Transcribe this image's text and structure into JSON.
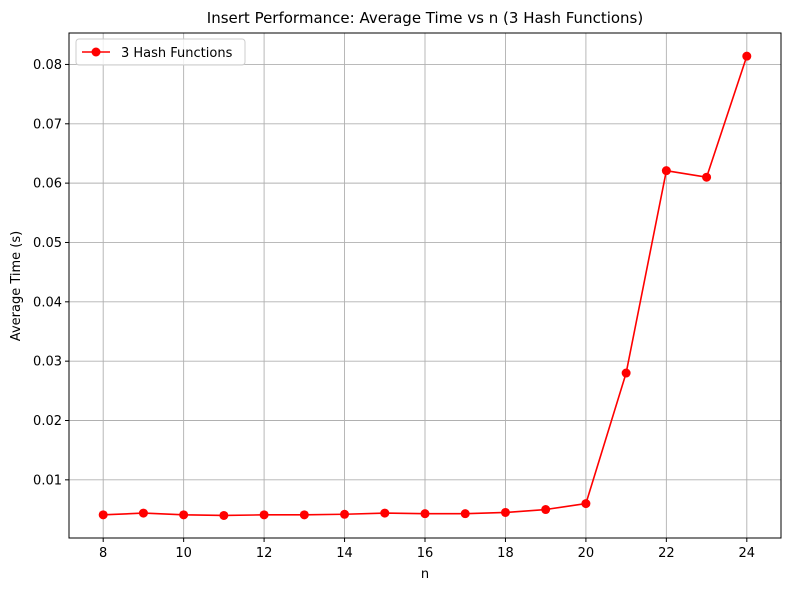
{
  "chart_data": {
    "type": "line",
    "title": "Insert Performance: Average Time vs n (3 Hash Functions)",
    "xlabel": "n",
    "ylabel": "Average Time (s)",
    "x": [
      8,
      9,
      10,
      11,
      12,
      13,
      14,
      15,
      16,
      17,
      18,
      19,
      20,
      21,
      22,
      23,
      24
    ],
    "series": [
      {
        "name": "3 Hash Functions",
        "color": "#ff0000",
        "marker": "circle",
        "values": [
          0.0041,
          0.0044,
          0.0041,
          0.004,
          0.0041,
          0.0041,
          0.0042,
          0.0044,
          0.0043,
          0.0043,
          0.0045,
          0.005,
          0.006,
          0.028,
          0.0621,
          0.061,
          0.0814
        ]
      }
    ],
    "xlim": [
      7.15,
      24.85
    ],
    "ylim": [
      0.0002,
      0.0853
    ],
    "xticks": [
      8,
      10,
      12,
      14,
      16,
      18,
      20,
      22,
      24
    ],
    "yticks": [
      0.01,
      0.02,
      0.03,
      0.04,
      0.05,
      0.06,
      0.07,
      0.08
    ],
    "ytick_labels": [
      "0.01",
      "0.02",
      "0.03",
      "0.04",
      "0.05",
      "0.06",
      "0.07",
      "0.08"
    ],
    "grid": true,
    "grid_color": "#b0b0b0",
    "legend_position": "top-left"
  }
}
